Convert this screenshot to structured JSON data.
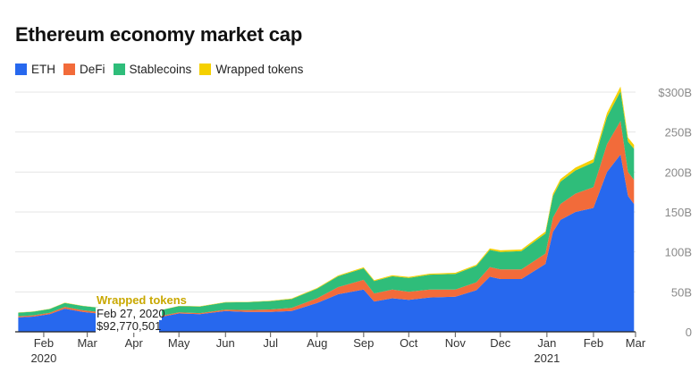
{
  "chart_data": {
    "type": "area",
    "stacked": true,
    "title": "Ethereum economy market cap",
    "legend": {
      "placement": "top-left"
    },
    "series": [
      {
        "name": "ETH",
        "color": "#2768ee"
      },
      {
        "name": "DeFi",
        "color": "#f26b3a"
      },
      {
        "name": "Stablecoins",
        "color": "#2fbd7a"
      },
      {
        "name": "Wrapped tokens",
        "color": "#f5d000"
      }
    ],
    "points": [
      {
        "x": "2020-01-15",
        "values": [
          18,
          1.5,
          4.5,
          0.2
        ]
      },
      {
        "x": "2020-01-25",
        "values": [
          19,
          1.6,
          4.6,
          0.2
        ]
      },
      {
        "x": "2020-02-05",
        "values": [
          22,
          1.8,
          4.8,
          0.2
        ]
      },
      {
        "x": "2020-02-15",
        "values": [
          29,
          2.2,
          5,
          0.3
        ]
      },
      {
        "x": "2020-02-27",
        "values": [
          25,
          2,
          5.3,
          0.3
        ]
      },
      {
        "x": "2020-03-08",
        "values": [
          23,
          1.8,
          5.5,
          0.3
        ]
      },
      {
        "x": "2020-03-15",
        "values": [
          15,
          1,
          6,
          0.2
        ]
      },
      {
        "x": "2020-03-25",
        "values": [
          15,
          1,
          6.3,
          0.2
        ]
      },
      {
        "x": "2020-04-05",
        "values": [
          17,
          1.1,
          6.8,
          0.3
        ]
      },
      {
        "x": "2020-04-20",
        "values": [
          19,
          1.3,
          7.2,
          0.3
        ]
      },
      {
        "x": "2020-05-01",
        "values": [
          23,
          1.4,
          7.8,
          0.3
        ]
      },
      {
        "x": "2020-05-15",
        "values": [
          22,
          1.4,
          8.3,
          0.3
        ]
      },
      {
        "x": "2020-06-01",
        "values": [
          26,
          1.8,
          9,
          0.4
        ]
      },
      {
        "x": "2020-06-15",
        "values": [
          25,
          2.2,
          9.8,
          0.4
        ]
      },
      {
        "x": "2020-07-01",
        "values": [
          25,
          3,
          10.5,
          0.5
        ]
      },
      {
        "x": "2020-07-15",
        "values": [
          26,
          4,
          11,
          0.6
        ]
      },
      {
        "x": "2020-08-01",
        "values": [
          36,
          6,
          12,
          0.8
        ]
      },
      {
        "x": "2020-08-15",
        "values": [
          47,
          9,
          13.5,
          1
        ]
      },
      {
        "x": "2020-09-01",
        "values": [
          53,
          12,
          14.5,
          1.2
        ]
      },
      {
        "x": "2020-09-08",
        "values": [
          38,
          10,
          15.5,
          1.1
        ]
      },
      {
        "x": "2020-09-20",
        "values": [
          42,
          11,
          16.5,
          1.2
        ]
      },
      {
        "x": "2020-10-01",
        "values": [
          40,
          10,
          17.5,
          1.2
        ]
      },
      {
        "x": "2020-10-15",
        "values": [
          43,
          10,
          18.5,
          1.3
        ]
      },
      {
        "x": "2020-11-01",
        "values": [
          44,
          9,
          19.5,
          1.4
        ]
      },
      {
        "x": "2020-11-15",
        "values": [
          52,
          10,
          20.5,
          1.5
        ]
      },
      {
        "x": "2020-11-24",
        "values": [
          69,
          12,
          21.5,
          1.8
        ]
      },
      {
        "x": "2020-12-01",
        "values": [
          66,
          12,
          22,
          2
        ]
      },
      {
        "x": "2020-12-15",
        "values": [
          66,
          12,
          23,
          2
        ]
      },
      {
        "x": "2020-12-31",
        "values": [
          85,
          13,
          25,
          2.5
        ]
      },
      {
        "x": "2021-01-05",
        "values": [
          125,
          18,
          27,
          3
        ]
      },
      {
        "x": "2021-01-10",
        "values": [
          140,
          20,
          28,
          3.2
        ]
      },
      {
        "x": "2021-01-20",
        "values": [
          150,
          23,
          29,
          3.5
        ]
      },
      {
        "x": "2021-02-01",
        "values": [
          155,
          26,
          31,
          4
        ]
      },
      {
        "x": "2021-02-10",
        "values": [
          200,
          35,
          34,
          5
        ]
      },
      {
        "x": "2021-02-19",
        "values": [
          222,
          42,
          37,
          6
        ]
      },
      {
        "x": "2021-02-24",
        "values": [
          170,
          30,
          38,
          5
        ]
      },
      {
        "x": "2021-02-28",
        "values": [
          160,
          30,
          39,
          5
        ]
      }
    ],
    "x_ticks": [
      {
        "x": "2020-02-01",
        "label": "Feb",
        "sublabel": "2020"
      },
      {
        "x": "2020-03-01",
        "label": "Mar"
      },
      {
        "x": "2020-04-01",
        "label": "Apr"
      },
      {
        "x": "2020-05-01",
        "label": "May"
      },
      {
        "x": "2020-06-01",
        "label": "Jun"
      },
      {
        "x": "2020-07-01",
        "label": "Jul"
      },
      {
        "x": "2020-08-01",
        "label": "Aug"
      },
      {
        "x": "2020-09-01",
        "label": "Sep"
      },
      {
        "x": "2020-10-01",
        "label": "Oct"
      },
      {
        "x": "2020-11-01",
        "label": "Nov"
      },
      {
        "x": "2020-12-01",
        "label": "Dec"
      },
      {
        "x": "2021-01-01",
        "label": "Jan",
        "sublabel": "2021"
      },
      {
        "x": "2021-02-01",
        "label": "Feb"
      },
      {
        "x": "2021-03-01",
        "label": "Mar"
      }
    ],
    "xlim": [
      "2020-01-13",
      "2021-03-01"
    ],
    "ylim": [
      0,
      300
    ],
    "y_ticks": [
      {
        "value": 0,
        "label": "0"
      },
      {
        "value": 50,
        "label": "50B"
      },
      {
        "value": 100,
        "label": "100B"
      },
      {
        "value": 150,
        "label": "150B"
      },
      {
        "value": 200,
        "label": "200B"
      },
      {
        "value": 250,
        "label": "250B"
      },
      {
        "value": 300,
        "label": "$300B"
      }
    ],
    "grid": true,
    "annotation": {
      "series": "Wrapped tokens",
      "label": "Wrapped tokens",
      "date": "Feb 27, 2020",
      "value": "$92,770,501",
      "color": "#c9a800"
    }
  }
}
